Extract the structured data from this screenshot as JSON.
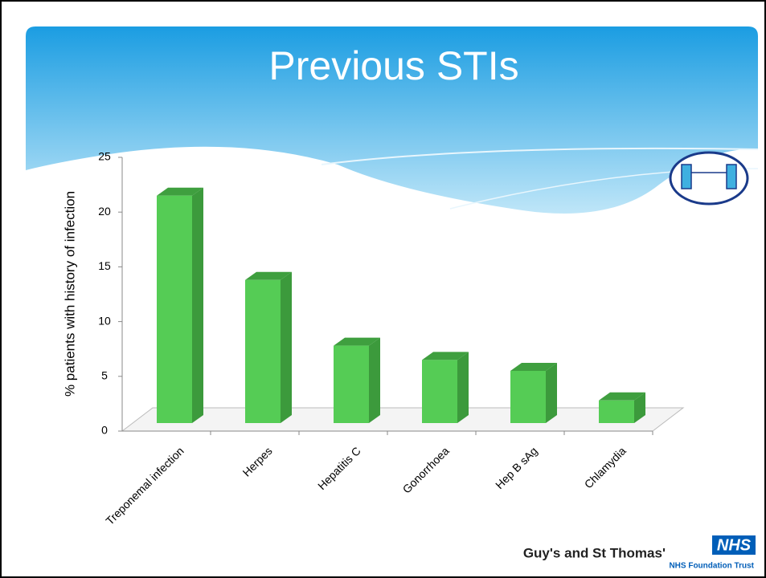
{
  "chart_data": {
    "type": "bar3d",
    "title": "Previous STIs",
    "y_label": "% patients with history of infection",
    "categories": [
      "Treponemal infection",
      "Herpes",
      "Hepatitis C",
      "Gonorrhoea",
      "Hep B sAg",
      "Chlamydia"
    ],
    "values": [
      21.5,
      13.8,
      7.8,
      6.5,
      5.5,
      2.8
    ],
    "color": "#55cc55",
    "ylim": [
      0,
      25
    ],
    "yticks": [
      0,
      5,
      10,
      15,
      20,
      25
    ],
    "grid": false
  },
  "logo": {
    "org": "Guy's and St Thomas'",
    "mark": "NHS",
    "trust": "NHS Foundation Trust"
  }
}
